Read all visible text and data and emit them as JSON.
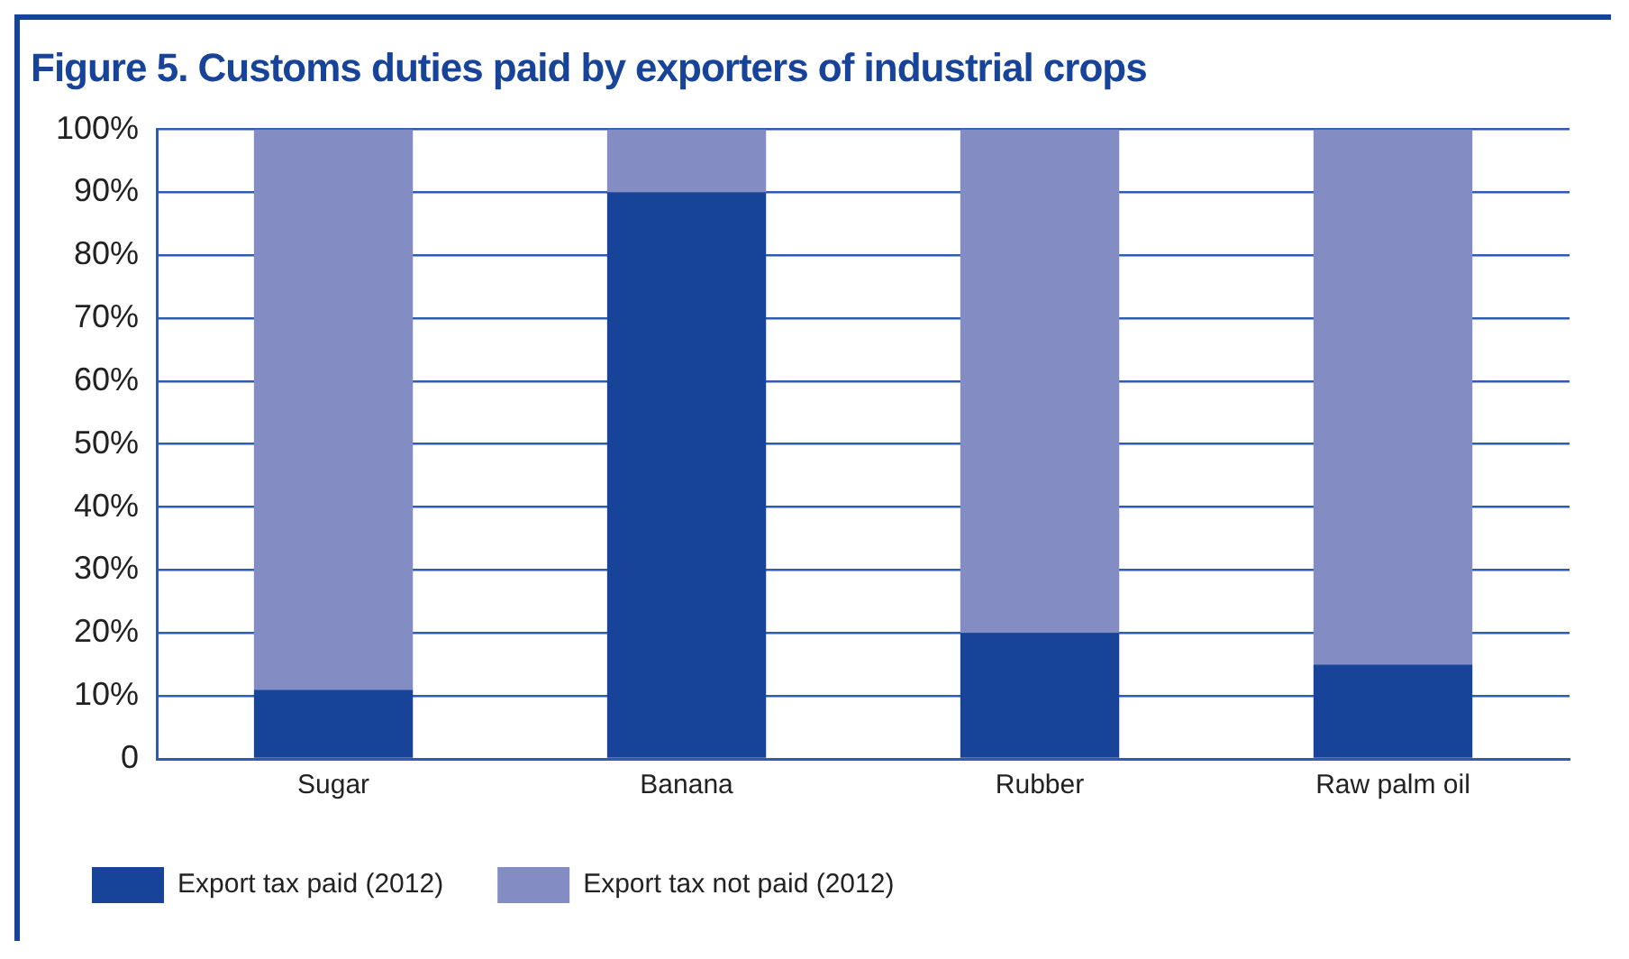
{
  "chart_data": {
    "type": "bar",
    "title": "Figure 5. Customs duties paid by exporters of industrial crops",
    "categories": [
      "Sugar",
      "Banana",
      "Rubber",
      "Raw palm oil"
    ],
    "stacked": true,
    "series": [
      {
        "name": "Export tax paid (2012)",
        "color": "#174499",
        "values": [
          11,
          90,
          20,
          15
        ]
      },
      {
        "name": "Export tax not paid (2012)",
        "color": "#848cc4",
        "values": [
          89,
          10,
          80,
          85
        ]
      }
    ],
    "ylim": [
      0,
      100
    ],
    "yticks": [
      0,
      {
        "value": 10,
        "label": "10%"
      },
      {
        "value": 20,
        "label": "20%"
      },
      {
        "value": 30,
        "label": "30%"
      },
      {
        "value": 40,
        "label": "40%"
      },
      {
        "value": 50,
        "label": "50%"
      },
      {
        "value": 60,
        "label": "60%"
      },
      {
        "value": 70,
        "label": "70%"
      },
      {
        "value": 80,
        "label": "80%"
      },
      {
        "value": 90,
        "label": "90%"
      },
      {
        "value": 100,
        "label": "100%"
      }
    ],
    "grid": "y",
    "legend": "bottom"
  }
}
